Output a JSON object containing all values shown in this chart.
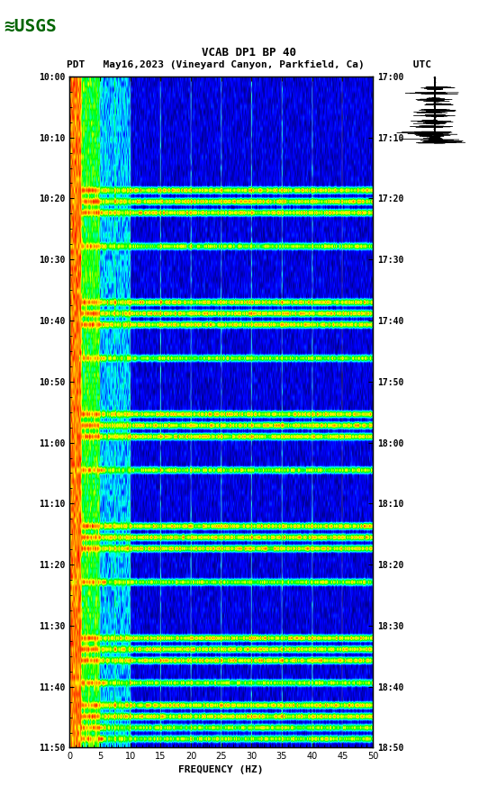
{
  "title_line1": "VCAB DP1 BP 40",
  "title_line2": "PDT   May16,2023 (Vineyard Canyon, Parkfield, Ca)        UTC",
  "xlabel": "FREQUENCY (HZ)",
  "left_times": [
    "10:00",
    "10:10",
    "10:20",
    "10:30",
    "10:40",
    "10:50",
    "11:00",
    "11:10",
    "11:20",
    "11:30",
    "11:40",
    "11:50"
  ],
  "right_times": [
    "17:00",
    "17:10",
    "17:20",
    "17:30",
    "17:40",
    "17:50",
    "18:00",
    "18:10",
    "18:20",
    "18:30",
    "18:40",
    "18:50"
  ],
  "freq_ticks": [
    0,
    5,
    10,
    15,
    20,
    25,
    30,
    35,
    40,
    45,
    50
  ],
  "freq_min": 0,
  "freq_max": 50,
  "n_time_steps": 120,
  "n_freq_bins": 500,
  "background_color": "#ffffff",
  "spectrogram_bg": "#000080",
  "fig_width": 5.52,
  "fig_height": 8.93
}
